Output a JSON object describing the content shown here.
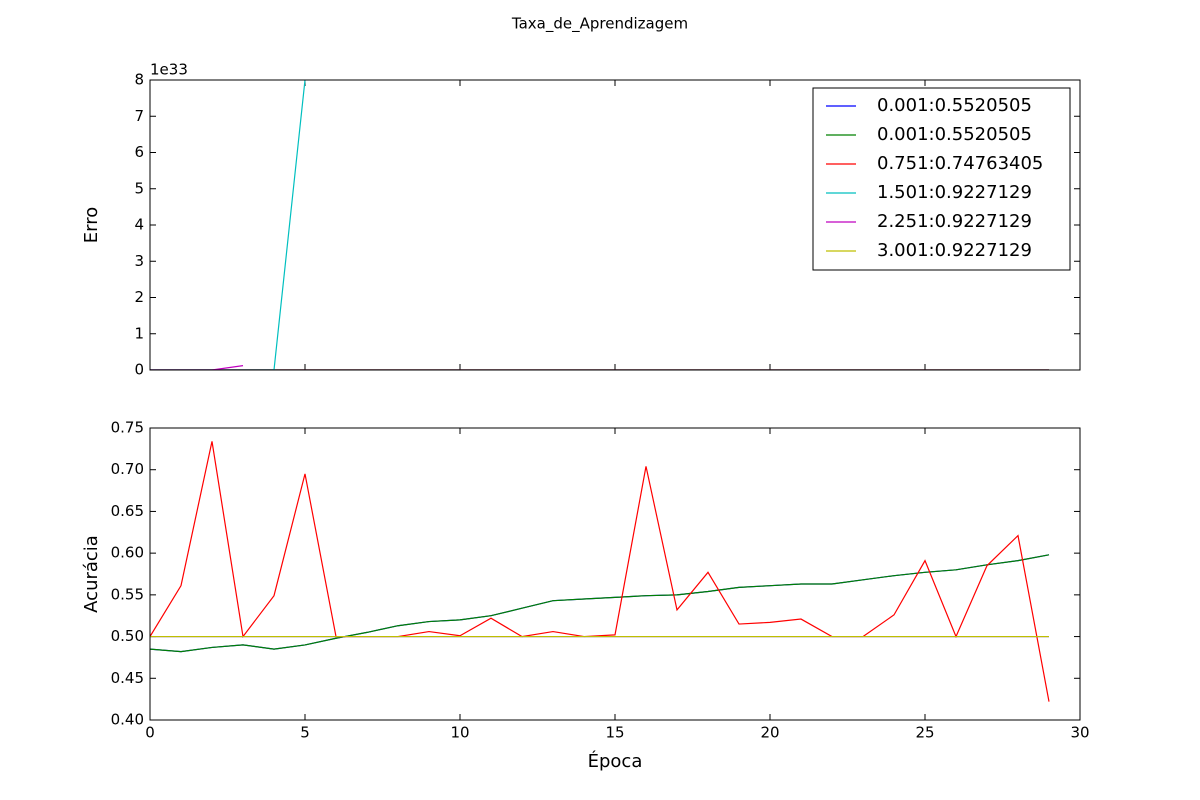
{
  "title": "Taxa_de_Aprendizagem",
  "chart_data": [
    {
      "type": "line",
      "ylabel": "Erro",
      "offset_label": "1e33",
      "x": [
        0,
        1,
        2,
        3,
        4,
        5,
        6,
        7,
        8,
        9,
        10,
        11,
        12,
        13,
        14,
        15,
        16,
        17,
        18,
        19,
        20,
        21,
        22,
        23,
        24,
        25,
        26,
        27,
        28,
        29
      ],
      "xlim": [
        0,
        30
      ],
      "xticks": [
        0,
        5,
        10,
        15,
        20,
        25,
        30
      ],
      "ylim": [
        0,
        8
      ],
      "yticks": [
        0,
        1,
        2,
        3,
        4,
        5,
        6,
        7,
        8
      ],
      "legend": "upper right",
      "series": [
        {
          "name": "0.001:0.5520505",
          "color": "#0000ff",
          "values": [
            0,
            0,
            0,
            0,
            0,
            0,
            0,
            0,
            0,
            0,
            0,
            0,
            0,
            0,
            0,
            0,
            0,
            0,
            0,
            0,
            0,
            0,
            0,
            0,
            0,
            0,
            0,
            0,
            0,
            0
          ]
        },
        {
          "name": "0.001:0.5520505",
          "color": "#008000",
          "values": [
            0,
            0,
            0,
            0,
            0,
            0,
            0,
            0,
            0,
            0,
            0,
            0,
            0,
            0,
            0,
            0,
            0,
            0,
            0,
            0,
            0,
            0,
            0,
            0,
            0,
            0,
            0,
            0,
            0,
            0
          ]
        },
        {
          "name": "0.751:0.74763405",
          "color": "#ff0000",
          "values": [
            0,
            0,
            0,
            0,
            0,
            0,
            0,
            0,
            0,
            0,
            0,
            0,
            0,
            0,
            0,
            0,
            0,
            0,
            0,
            0,
            0,
            0,
            0,
            0,
            0,
            0,
            0,
            0,
            0,
            0
          ]
        },
        {
          "name": "1.501:0.9227129",
          "color": "#00bfbf",
          "values": [
            0,
            0,
            0,
            0,
            0,
            8,
            null,
            null,
            null,
            null,
            null,
            null,
            null,
            null,
            null,
            null,
            null,
            null,
            null,
            null,
            null,
            null,
            null,
            null,
            null,
            null,
            null,
            null,
            null,
            null
          ]
        },
        {
          "name": "2.251:0.9227129",
          "color": "#bf00bf",
          "values": [
            0,
            0,
            0,
            0.12,
            null,
            null,
            null,
            null,
            null,
            null,
            null,
            null,
            null,
            null,
            null,
            null,
            null,
            null,
            null,
            null,
            null,
            null,
            null,
            null,
            null,
            null,
            null,
            null,
            null,
            null
          ]
        },
        {
          "name": "3.001:0.9227129",
          "color": "#bfbf00",
          "values": [
            null,
            null,
            null,
            null,
            null,
            null,
            null,
            null,
            null,
            null,
            null,
            null,
            null,
            null,
            null,
            null,
            null,
            null,
            null,
            null,
            null,
            null,
            null,
            null,
            null,
            null,
            null,
            null,
            null,
            null
          ]
        }
      ]
    },
    {
      "type": "line",
      "ylabel": "Acurácia",
      "xlabel": "Época",
      "x": [
        0,
        1,
        2,
        3,
        4,
        5,
        6,
        7,
        8,
        9,
        10,
        11,
        12,
        13,
        14,
        15,
        16,
        17,
        18,
        19,
        20,
        21,
        22,
        23,
        24,
        25,
        26,
        27,
        28,
        29
      ],
      "xlim": [
        0,
        30
      ],
      "xticks": [
        0,
        5,
        10,
        15,
        20,
        25,
        30
      ],
      "ylim": [
        0.4,
        0.75
      ],
      "yticks": [
        {
          "value": 0.4,
          "label": "0.40"
        },
        0.45,
        {
          "value": 0.5,
          "label": "0.50"
        },
        0.55,
        {
          "value": 0.6,
          "label": "0.60"
        },
        0.65,
        {
          "value": 0.7,
          "label": "0.70"
        },
        0.75
      ],
      "series": [
        {
          "name": "0.001:0.5520505",
          "color": "#0000ff",
          "values": [
            0.485,
            0.482,
            0.487,
            0.49,
            0.485,
            0.49,
            0.498,
            0.505,
            0.513,
            0.518,
            0.52,
            0.525,
            0.534,
            0.543,
            0.545,
            0.547,
            0.549,
            0.55,
            0.554,
            0.559,
            0.561,
            0.563,
            0.563,
            0.568,
            0.573,
            0.577,
            0.58,
            0.586,
            0.591,
            0.598
          ]
        },
        {
          "name": "0.001:0.5520505",
          "color": "#008000",
          "values": [
            0.485,
            0.482,
            0.487,
            0.49,
            0.485,
            0.49,
            0.498,
            0.505,
            0.513,
            0.518,
            0.52,
            0.525,
            0.534,
            0.543,
            0.545,
            0.547,
            0.549,
            0.55,
            0.554,
            0.559,
            0.561,
            0.563,
            0.563,
            0.568,
            0.573,
            0.577,
            0.58,
            0.586,
            0.591,
            0.598
          ]
        },
        {
          "name": "0.751:0.74763405",
          "color": "#ff0000",
          "values": [
            0.5,
            0.561,
            0.734,
            0.5,
            0.549,
            0.695,
            0.5,
            0.5,
            0.5,
            0.506,
            0.501,
            0.522,
            0.5,
            0.506,
            0.5,
            0.502,
            0.704,
            0.532,
            0.577,
            0.515,
            0.517,
            0.521,
            0.5,
            0.5,
            0.526,
            0.591,
            0.5,
            0.585,
            0.621,
            0.422
          ]
        },
        {
          "name": "1.501:0.9227129",
          "color": "#00bfbf",
          "values": [
            0.5,
            0.5,
            0.5,
            0.5,
            0.5,
            0.5,
            0.5,
            0.5,
            0.5,
            0.5,
            0.5,
            0.5,
            0.5,
            0.5,
            0.5,
            0.5,
            0.5,
            0.5,
            0.5,
            0.5,
            0.5,
            0.5,
            0.5,
            0.5,
            0.5,
            0.5,
            0.5,
            0.5,
            0.5,
            0.5
          ]
        },
        {
          "name": "2.251:0.9227129",
          "color": "#bf00bf",
          "values": [
            0.5,
            0.5,
            0.5,
            0.5,
            0.5,
            0.5,
            0.5,
            0.5,
            0.5,
            0.5,
            0.5,
            0.5,
            0.5,
            0.5,
            0.5,
            0.5,
            0.5,
            0.5,
            0.5,
            0.5,
            0.5,
            0.5,
            0.5,
            0.5,
            0.5,
            0.5,
            0.5,
            0.5,
            0.5,
            0.5
          ]
        },
        {
          "name": "3.001:0.9227129",
          "color": "#bfbf00",
          "values": [
            0.5,
            0.5,
            0.5,
            0.5,
            0.5,
            0.5,
            0.5,
            0.5,
            0.5,
            0.5,
            0.5,
            0.5,
            0.5,
            0.5,
            0.5,
            0.5,
            0.5,
            0.5,
            0.5,
            0.5,
            0.5,
            0.5,
            0.5,
            0.5,
            0.5,
            0.5,
            0.5,
            0.5,
            0.5,
            0.5
          ]
        }
      ]
    }
  ]
}
